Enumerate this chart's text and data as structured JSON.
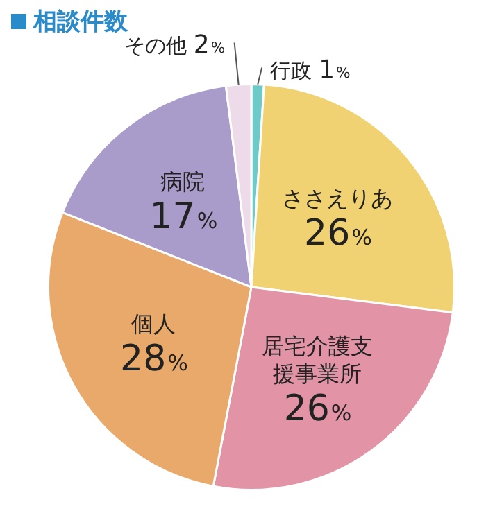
{
  "chart_data": {
    "type": "pie",
    "title": "相談件数",
    "categories": [
      "行政",
      "ささえりあ",
      "居宅介護支援事業所",
      "個人",
      "病院",
      "その他"
    ],
    "values": [
      1,
      26,
      26,
      28,
      17,
      2
    ],
    "colors": [
      "#6ec9c9",
      "#f0d272",
      "#e294a6",
      "#e8a96a",
      "#a99bca",
      "#eedbea"
    ],
    "value_labels": [
      "1%",
      "26%",
      "26%",
      "28%",
      "17%",
      "2%"
    ],
    "legend": false
  }
}
